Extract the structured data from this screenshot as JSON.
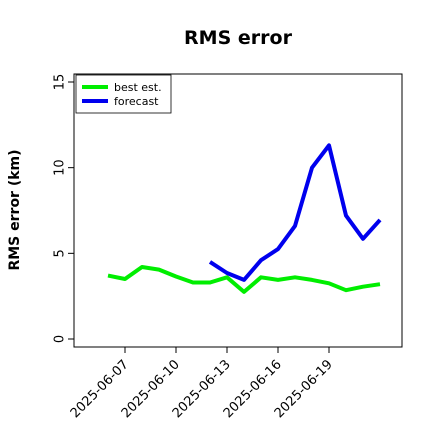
{
  "chart_data": {
    "type": "line",
    "title": "RMS error",
    "xlabel": "",
    "ylabel": "RMS error (km)",
    "ylim": [
      0,
      15
    ],
    "yticks": [
      0,
      5,
      10,
      15
    ],
    "xticks": [
      "2025-06-07",
      "2025-06-10",
      "2025-06-13",
      "2025-06-16",
      "2025-06-19"
    ],
    "xlim": [
      "2025-06-04",
      "2025-06-24"
    ],
    "grid": false,
    "legend": "top-left",
    "series": [
      {
        "name": "best est.",
        "color": "#00ee00",
        "points": [
          [
            "2025-06-06",
            3.7
          ],
          [
            "2025-06-07",
            3.5
          ],
          [
            "2025-06-08",
            4.2
          ],
          [
            "2025-06-09",
            4.05
          ],
          [
            "2025-06-10",
            3.65
          ],
          [
            "2025-06-11",
            3.3
          ],
          [
            "2025-06-12",
            3.3
          ],
          [
            "2025-06-13",
            3.6
          ],
          [
            "2025-06-14",
            2.75
          ],
          [
            "2025-06-15",
            3.6
          ],
          [
            "2025-06-16",
            3.45
          ],
          [
            "2025-06-17",
            3.6
          ],
          [
            "2025-06-18",
            3.45
          ],
          [
            "2025-06-19",
            3.25
          ],
          [
            "2025-06-20",
            2.85
          ],
          [
            "2025-06-21",
            3.05
          ],
          [
            "2025-06-22",
            3.2
          ]
        ]
      },
      {
        "name": "forecast",
        "color": "#0000ee",
        "points": [
          [
            "2025-06-12",
            4.5
          ],
          [
            "2025-06-13",
            3.85
          ],
          [
            "2025-06-14",
            3.45
          ],
          [
            "2025-06-15",
            4.6
          ],
          [
            "2025-06-16",
            5.25
          ],
          [
            "2025-06-17",
            6.6
          ],
          [
            "2025-06-18",
            10.0
          ],
          [
            "2025-06-19",
            11.3
          ],
          [
            "2025-06-20",
            7.2
          ],
          [
            "2025-06-21",
            5.85
          ],
          [
            "2025-06-22",
            6.95
          ]
        ]
      }
    ]
  }
}
